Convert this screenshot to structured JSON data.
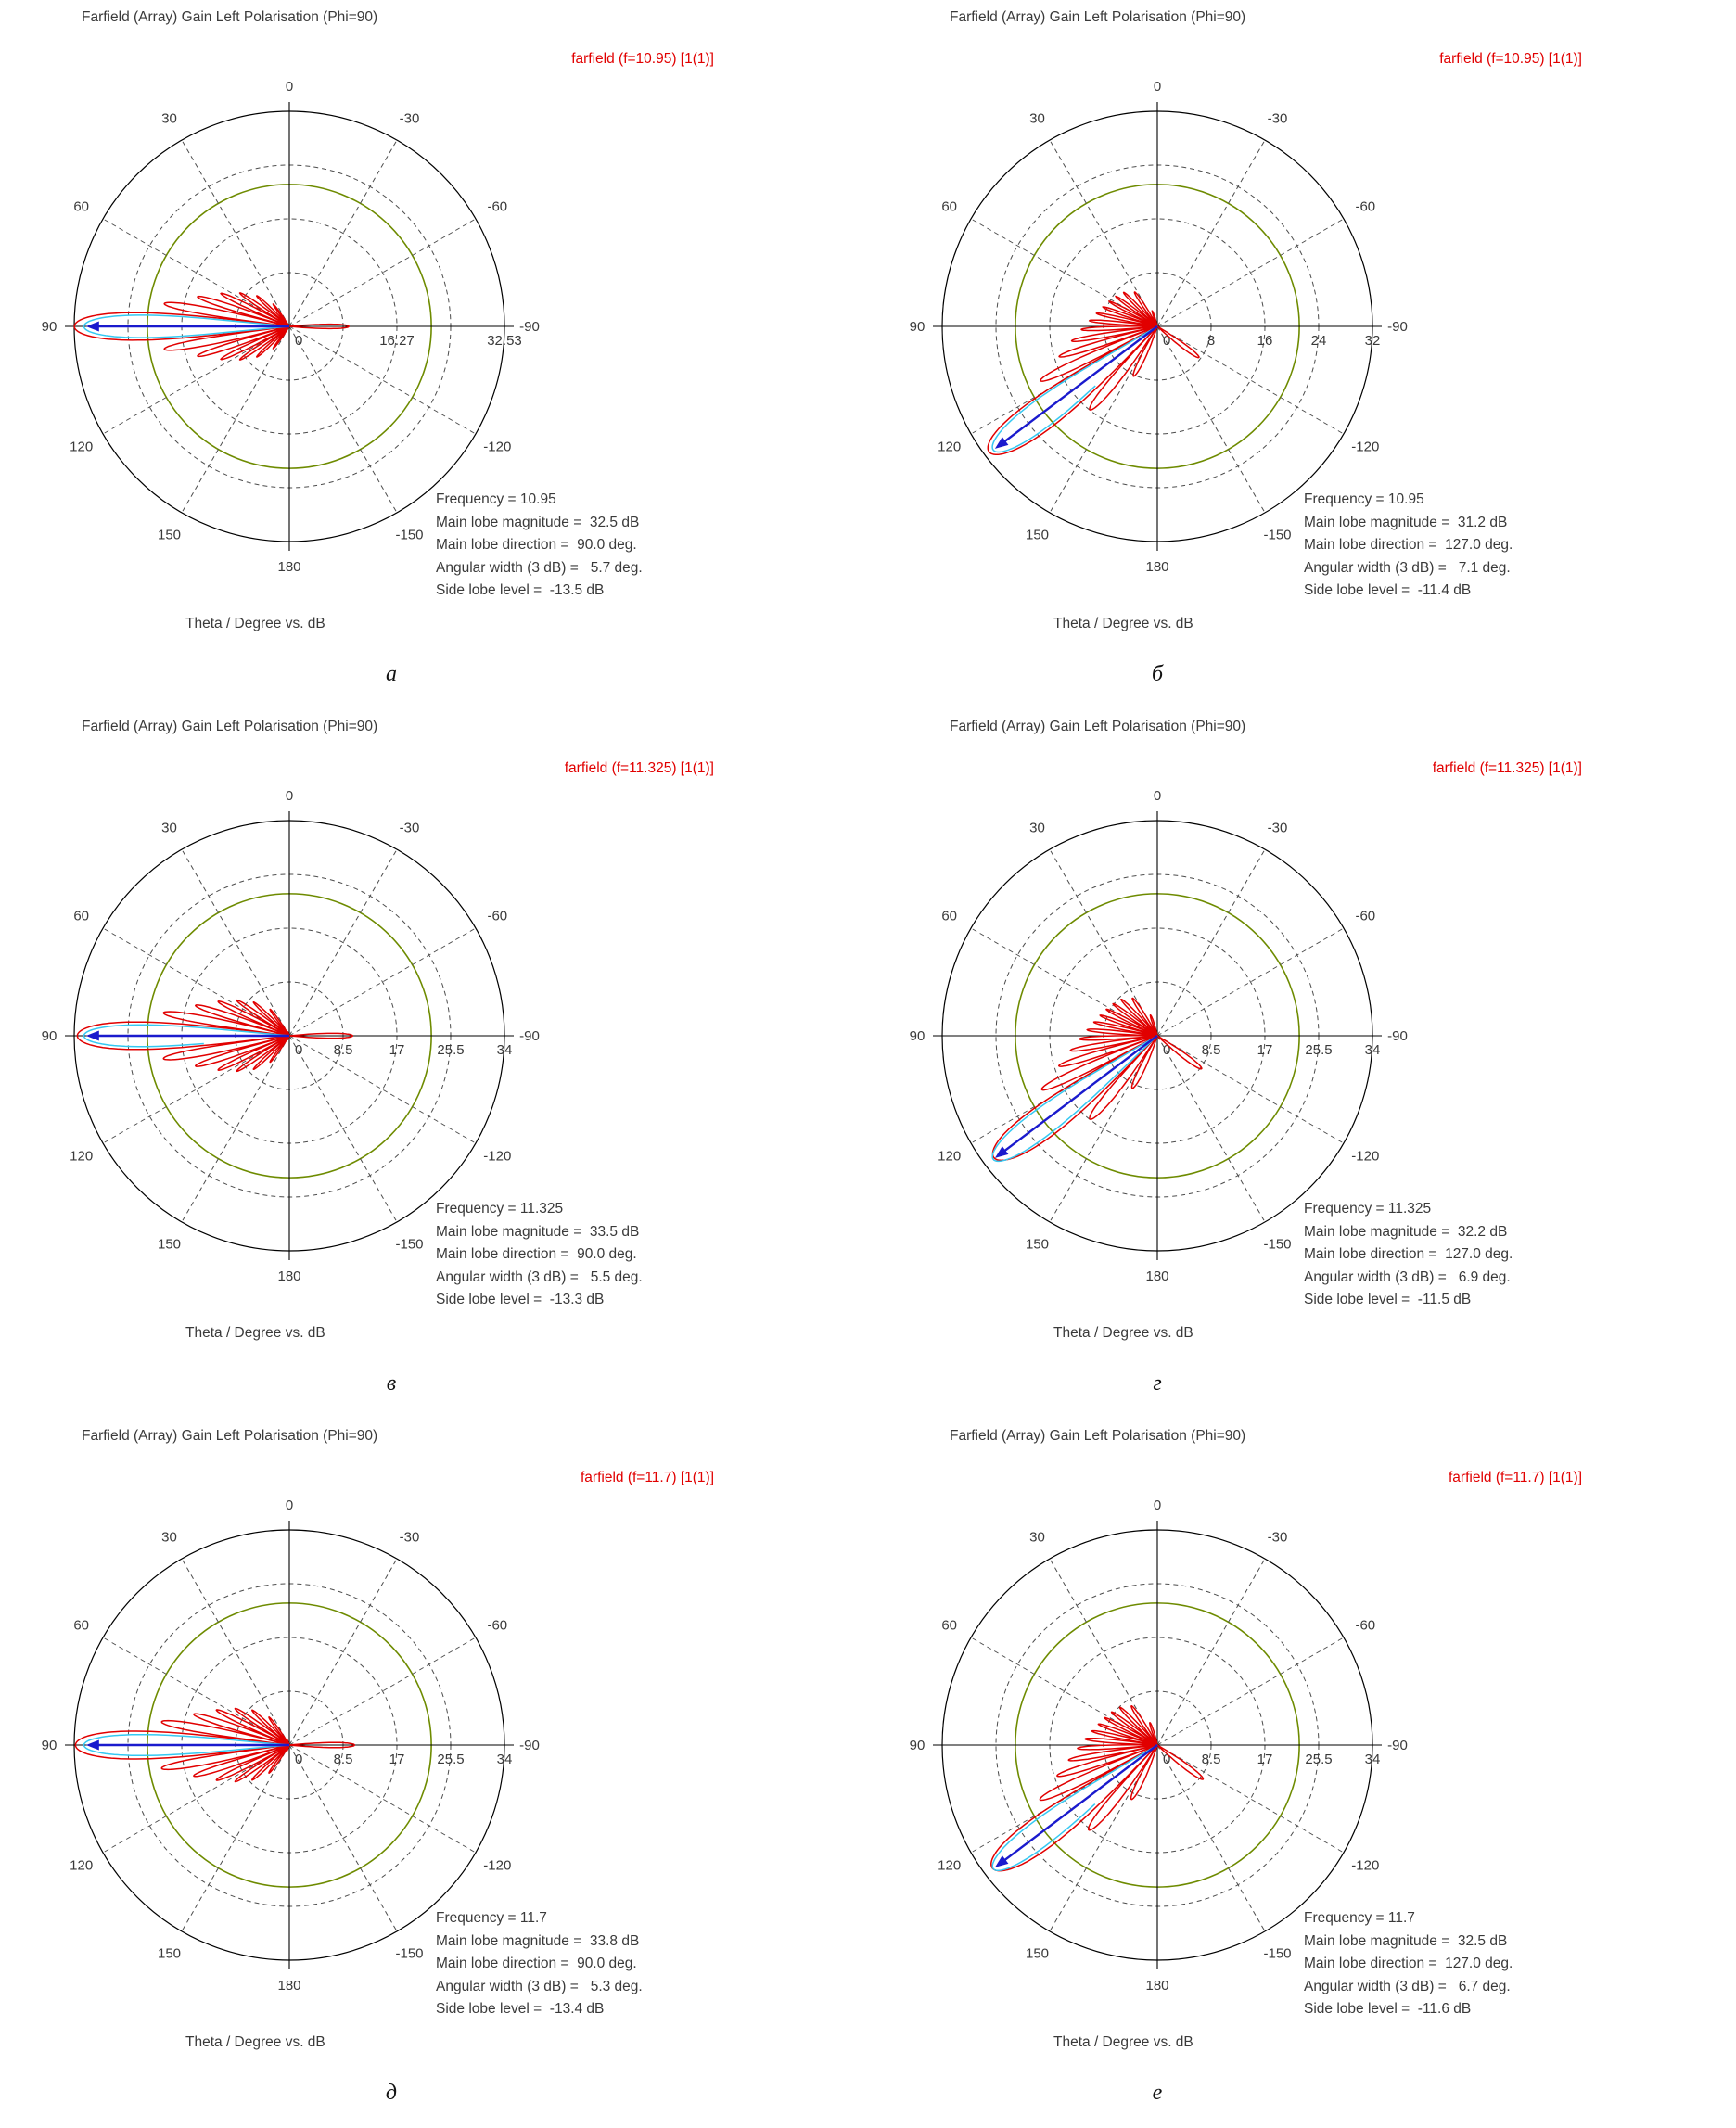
{
  "page": {
    "background": "#ffffff"
  },
  "colors": {
    "curve": "#e10000",
    "legend_text": "#e10000",
    "main_lobe_marker": "#1a1acd",
    "width_marker": "#35c8f2",
    "grid_ring_accent": "#6e8b00",
    "grid_dashed": "#4c4c4c",
    "axis": "#000000",
    "text": "#3a3a3a"
  },
  "shared": {
    "angle_labels": [
      {
        "deg": 0,
        "label": "0"
      },
      {
        "deg": 30,
        "label": "30"
      },
      {
        "deg": 60,
        "label": "60"
      },
      {
        "deg": 90,
        "label": "90"
      },
      {
        "deg": 120,
        "label": "120"
      },
      {
        "deg": 150,
        "label": "150"
      },
      {
        "deg": 180,
        "label": "180"
      },
      {
        "deg": -150,
        "label": "-150"
      },
      {
        "deg": -120,
        "label": "-120"
      },
      {
        "deg": -90,
        "label": "-90"
      },
      {
        "deg": -60,
        "label": "-60"
      },
      {
        "deg": -30,
        "label": "-30"
      }
    ]
  },
  "chart_data": [
    {
      "type": "polar-pattern",
      "caption": "а",
      "title": "Farfield (Array) Gain Left Polarisation (Phi=90)",
      "legend": "farfield (f=10.95) [1(1)]",
      "footer": "Theta / Degree vs. dB",
      "frequency": 10.95,
      "main_lobe_magnitude_db": 32.5,
      "main_lobe_direction_deg": 90.0,
      "angular_width_3db_deg": 5.7,
      "side_lobe_level_db": -13.5,
      "r_max_db": 32.53,
      "radial_tick_values": [
        0,
        16.27,
        32.53
      ],
      "radial_tick_labels": [
        "0",
        "16.27",
        "32.53"
      ],
      "stats": [
        "Frequency = 10.95",
        "Main lobe magnitude =  32.5 dB",
        "Main lobe direction =  90.0 deg.",
        "Angular width (3 dB) =   5.7 deg.",
        "Side lobe level =  -13.5 dB"
      ]
    },
    {
      "type": "polar-pattern",
      "caption": "б",
      "title": "Farfield (Array) Gain Left Polarisation (Phi=90)",
      "legend": "farfield (f=10.95) [1(1)]",
      "footer": "Theta / Degree vs. dB",
      "frequency": 10.95,
      "main_lobe_magnitude_db": 31.2,
      "main_lobe_direction_deg": 127.0,
      "angular_width_3db_deg": 7.1,
      "side_lobe_level_db": -11.4,
      "r_max_db": 32,
      "radial_tick_values": [
        0,
        8,
        16,
        24,
        32
      ],
      "radial_tick_labels": [
        "0",
        "8",
        "16",
        "24",
        "32"
      ],
      "stats": [
        "Frequency = 10.95",
        "Main lobe magnitude =  31.2 dB",
        "Main lobe direction =  127.0 deg.",
        "Angular width (3 dB) =   7.1 deg.",
        "Side lobe level =  -11.4 dB"
      ]
    },
    {
      "type": "polar-pattern",
      "caption": "в",
      "title": "Farfield (Array) Gain Left Polarisation (Phi=90)",
      "legend": "farfield (f=11.325) [1(1)]",
      "footer": "Theta / Degree vs. dB",
      "frequency": 11.325,
      "main_lobe_magnitude_db": 33.5,
      "main_lobe_direction_deg": 90.0,
      "angular_width_3db_deg": 5.5,
      "side_lobe_level_db": -13.3,
      "r_max_db": 34,
      "radial_tick_values": [
        0,
        8.5,
        17,
        25.5,
        34
      ],
      "radial_tick_labels": [
        "0",
        "8.5",
        "17",
        "25.5",
        "34"
      ],
      "stats": [
        "Frequency = 11.325",
        "Main lobe magnitude =  33.5 dB",
        "Main lobe direction =  90.0 deg.",
        "Angular width (3 dB) =   5.5 deg.",
        "Side lobe level =  -13.3 dB"
      ]
    },
    {
      "type": "polar-pattern",
      "caption": "г",
      "title": "Farfield (Array) Gain Left Polarisation (Phi=90)",
      "legend": "farfield (f=11.325) [1(1)]",
      "footer": "Theta / Degree vs. dB",
      "frequency": 11.325,
      "main_lobe_magnitude_db": 32.2,
      "main_lobe_direction_deg": 127.0,
      "angular_width_3db_deg": 6.9,
      "side_lobe_level_db": -11.5,
      "r_max_db": 34,
      "radial_tick_values": [
        0,
        8.5,
        17,
        25.5,
        34
      ],
      "radial_tick_labels": [
        "0",
        "8.5",
        "17",
        "25.5",
        "34"
      ],
      "stats": [
        "Frequency = 11.325",
        "Main lobe magnitude =  32.2 dB",
        "Main lobe direction =  127.0 deg.",
        "Angular width (3 dB) =   6.9 deg.",
        "Side lobe level =  -11.5 dB"
      ]
    },
    {
      "type": "polar-pattern",
      "caption": "д",
      "title": "Farfield (Array) Gain Left Polarisation (Phi=90)",
      "legend": "farfield (f=11.7) [1(1)]",
      "footer": "Theta / Degree vs. dB",
      "frequency": 11.7,
      "main_lobe_magnitude_db": 33.8,
      "main_lobe_direction_deg": 90.0,
      "angular_width_3db_deg": 5.3,
      "side_lobe_level_db": -13.4,
      "r_max_db": 34,
      "radial_tick_values": [
        0,
        8.5,
        17,
        25.5,
        34
      ],
      "radial_tick_labels": [
        "0",
        "8.5",
        "17",
        "25.5",
        "34"
      ],
      "stats": [
        "Frequency = 11.7",
        "Main lobe magnitude =  33.8 dB",
        "Main lobe direction =  90.0 deg.",
        "Angular width (3 dB) =   5.3 deg.",
        "Side lobe level =  -13.4 dB"
      ]
    },
    {
      "type": "polar-pattern",
      "caption": "е",
      "title": "Farfield (Array) Gain Left Polarisation (Phi=90)",
      "legend": "farfield (f=11.7) [1(1)]",
      "footer": "Theta / Degree vs. dB",
      "frequency": 11.7,
      "main_lobe_magnitude_db": 32.5,
      "main_lobe_direction_deg": 127.0,
      "angular_width_3db_deg": 6.7,
      "side_lobe_level_db": -11.6,
      "r_max_db": 34,
      "radial_tick_values": [
        0,
        8.5,
        17,
        25.5,
        34
      ],
      "radial_tick_labels": [
        "0",
        "8.5",
        "17",
        "25.5",
        "34"
      ],
      "stats": [
        "Frequency = 11.7",
        "Main lobe magnitude =  32.5 dB",
        "Main lobe direction =  127.0 deg.",
        "Angular width (3 dB) =   6.7 deg.",
        "Side lobe level =  -11.6 dB"
      ]
    }
  ]
}
